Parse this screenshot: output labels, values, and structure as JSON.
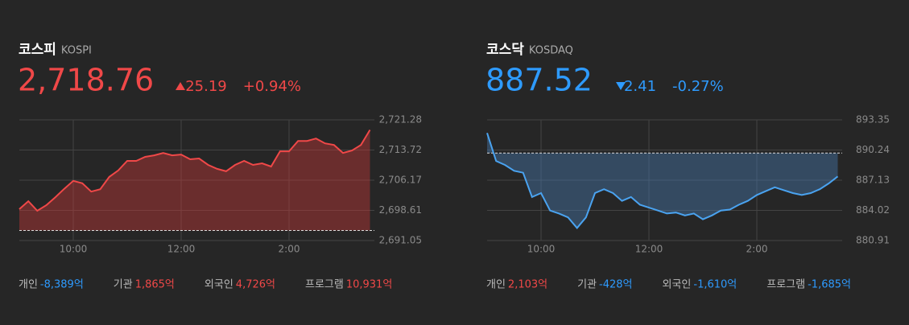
{
  "panels": [
    {
      "name": "코스피",
      "code": "KOSPI",
      "value": "2,718.76",
      "change": "25.19",
      "change_pct": "+0.94%",
      "investors": [
        [
          "개인",
          "-8,389억"
        ],
        [
          "기관",
          "1,865억"
        ],
        [
          "외국인",
          "4,726억"
        ],
        [
          "프로그램",
          "10,931억"
        ]
      ]
    },
    {
      "name": "코스닥",
      "code": "KOSDAQ",
      "value": "887.52",
      "change": "2.41",
      "change_pct": "-0.27%",
      "investors": [
        [
          "개인",
          "2,103억"
        ],
        [
          "기관",
          "-428억"
        ],
        [
          "외국인",
          "-1,610억"
        ],
        [
          "프로그램",
          "-1,685억"
        ]
      ]
    }
  ],
  "chart_data": [
    {
      "type": "area",
      "color": "#f04848",
      "fill": "rgba(200,55,55,0.42)",
      "reference": 2693.57,
      "categories": [
        null,
        null,
        null,
        null,
        null,
        null,
        "10:00",
        null,
        null,
        null,
        null,
        null,
        null,
        null,
        null,
        null,
        null,
        null,
        "12:00",
        null,
        null,
        null,
        null,
        null,
        null,
        null,
        null,
        null,
        null,
        null,
        "2:00",
        null,
        null,
        null,
        null,
        null,
        null,
        null,
        null,
        null
      ],
      "values": [
        2698.9,
        2700.9,
        2698.5,
        2699.9,
        2701.9,
        2704,
        2706,
        2705.4,
        2703.3,
        2703.9,
        2707,
        2708.6,
        2711,
        2711,
        2712,
        2712.4,
        2713,
        2712.4,
        2712.6,
        2711.4,
        2711.6,
        2710,
        2709,
        2708.4,
        2710,
        2711,
        2710,
        2710.4,
        2709.6,
        2713.4,
        2713.4,
        2716,
        2716,
        2716.6,
        2715.4,
        2715,
        2713,
        2713.6,
        2715,
        2718.76
      ],
      "ylim": [
        2691.05,
        2721.28
      ],
      "yticks": [
        {
          "value": 2721.28,
          "label": "2,721.28"
        },
        {
          "value": 2713.72,
          "label": "2,713.72"
        },
        {
          "value": 2706.17,
          "label": "2,706.17"
        },
        {
          "value": 2698.61,
          "label": "2,698.61"
        },
        {
          "value": 2691.05,
          "label": "2,691.05"
        }
      ],
      "grid": true
    },
    {
      "type": "area",
      "color": "#4aa3f0",
      "fill": "rgba(70,120,170,0.45)",
      "reference": 889.93,
      "categories": [
        null,
        null,
        null,
        null,
        null,
        null,
        "10:00",
        null,
        null,
        null,
        null,
        null,
        null,
        null,
        null,
        null,
        null,
        null,
        "12:00",
        null,
        null,
        null,
        null,
        null,
        null,
        null,
        null,
        null,
        null,
        null,
        "2:00",
        null,
        null,
        null,
        null,
        null,
        null,
        null,
        null,
        null
      ],
      "values": [
        892.0,
        889.1,
        888.7,
        888.1,
        887.9,
        885.4,
        885.8,
        884.0,
        883.7,
        883.3,
        882.2,
        883.3,
        885.8,
        886.2,
        885.8,
        885.0,
        885.4,
        884.6,
        884.3,
        884.0,
        883.7,
        883.8,
        883.5,
        883.7,
        883.1,
        883.5,
        884.0,
        884.1,
        884.6,
        885.0,
        885.6,
        886.0,
        886.4,
        886.1,
        885.8,
        885.6,
        885.8,
        886.2,
        886.8,
        887.52
      ],
      "ylim": [
        880.91,
        893.35
      ],
      "yticks": [
        893.35,
        890.24,
        887.13,
        884.02,
        880.91
      ],
      "grid": true
    }
  ]
}
